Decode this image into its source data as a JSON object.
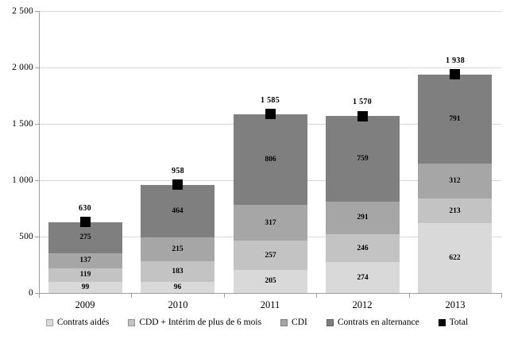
{
  "chart_data": {
    "type": "bar",
    "stacked": true,
    "title": "",
    "xlabel": "",
    "ylabel": "",
    "categories": [
      "2009",
      "2010",
      "2011",
      "2012",
      "2013"
    ],
    "series": [
      {
        "name": "Contrats aidés",
        "color": "#d9d9d9",
        "values": [
          99,
          96,
          205,
          274,
          622
        ]
      },
      {
        "name": "CDD + Intérim de plus de 6 mois",
        "color": "#c3c3c3",
        "values": [
          119,
          183,
          257,
          246,
          213
        ]
      },
      {
        "name": "CDI",
        "color": "#a6a6a6",
        "values": [
          137,
          215,
          317,
          291,
          312
        ]
      },
      {
        "name": "Contrats en alternance",
        "color": "#7f7f7f",
        "values": [
          275,
          464,
          806,
          759,
          791
        ]
      }
    ],
    "total_series": {
      "name": "Total",
      "color": "#000000",
      "marker": "square",
      "values": [
        630,
        958,
        1585,
        1570,
        1938
      ],
      "labels": [
        "630",
        "958",
        "1 585",
        "1 570",
        "1 938"
      ]
    },
    "ylim": [
      0,
      2500
    ],
    "y_ticks": {
      "values": [
        0,
        500,
        1000,
        1500,
        2000,
        2500
      ],
      "labels": [
        "0",
        "500",
        "1 000",
        "1 500",
        "2 000",
        "2 500"
      ]
    },
    "grid": true,
    "legend_position": "bottom"
  },
  "legend": {
    "items": [
      {
        "label": "Contrats aidés",
        "color": "#d9d9d9"
      },
      {
        "label": "CDD + Intérim de plus de 6 mois",
        "color": "#c3c3c3"
      },
      {
        "label": "CDI",
        "color": "#a6a6a6"
      },
      {
        "label": "Contrats en alternance",
        "color": "#7f7f7f"
      },
      {
        "label": "Total",
        "color": "#000000"
      }
    ]
  }
}
